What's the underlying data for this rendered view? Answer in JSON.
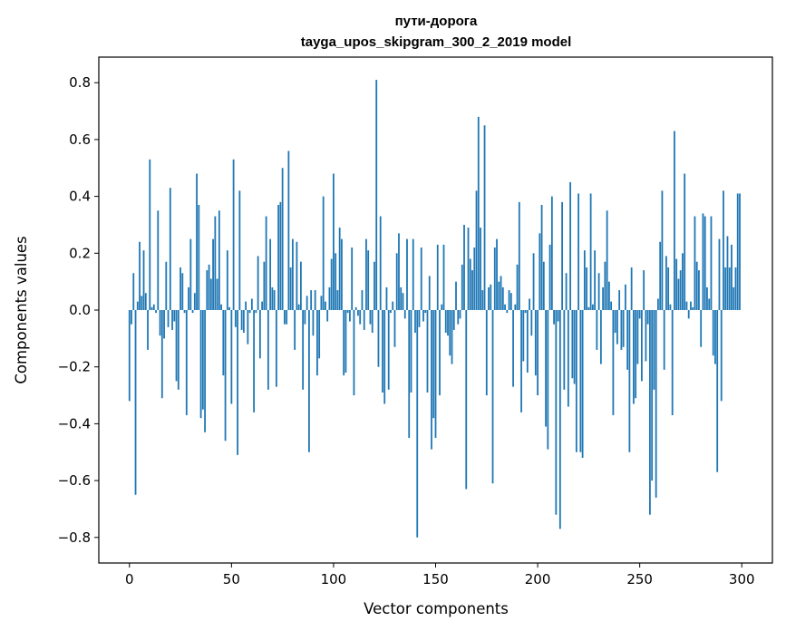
{
  "chart_data": {
    "type": "bar",
    "title": "пути-дорога",
    "subtitle": "tayga_upos_skipgram_300_2_2019 model",
    "xlabel": "Vector components",
    "ylabel": "Components values",
    "xlim": [
      -15,
      315
    ],
    "ylim": [
      -0.89,
      0.89
    ],
    "xticks": [
      0,
      50,
      100,
      150,
      200,
      250,
      300
    ],
    "xtick_labels": [
      "0",
      "50",
      "100",
      "150",
      "200",
      "250",
      "300"
    ],
    "yticks": [
      -0.8,
      -0.6,
      -0.4,
      -0.2,
      0.0,
      0.2,
      0.4,
      0.6,
      0.8
    ],
    "ytick_labels": [
      "−0.8",
      "−0.6",
      "−0.4",
      "−0.2",
      "0.0",
      "0.2",
      "0.4",
      "0.6",
      "0.8"
    ],
    "grid": false,
    "bar_color": "#1f77b4",
    "values": [
      -0.32,
      -0.05,
      0.13,
      -0.65,
      0.03,
      0.24,
      0.05,
      0.21,
      0.06,
      -0.14,
      0.53,
      0.01,
      0.02,
      -0.01,
      0.35,
      -0.09,
      -0.31,
      -0.1,
      0.17,
      -0.06,
      0.43,
      -0.07,
      -0.04,
      -0.25,
      -0.28,
      0.15,
      0.13,
      -0.01,
      -0.37,
      0.08,
      0.25,
      -0.01,
      0.06,
      0.48,
      0.37,
      -0.38,
      -0.35,
      -0.43,
      0.14,
      0.16,
      0.11,
      0.25,
      0.33,
      0.11,
      0.35,
      0.02,
      -0.23,
      -0.46,
      0.21,
      0.01,
      -0.33,
      0.53,
      -0.06,
      -0.51,
      0.42,
      -0.07,
      -0.08,
      0.03,
      -0.12,
      -0.01,
      0.04,
      -0.36,
      -0.01,
      0.19,
      -0.17,
      0.03,
      0.17,
      0.33,
      -0.28,
      0.25,
      0.08,
      0.07,
      -0.27,
      0.37,
      0.38,
      0.5,
      -0.05,
      -0.05,
      0.56,
      0.15,
      0.25,
      -0.14,
      0.24,
      0.02,
      0.17,
      -0.28,
      -0.05,
      0.05,
      -0.5,
      0.07,
      -0.09,
      0.07,
      -0.23,
      -0.17,
      0.05,
      0.4,
      0.03,
      -0.04,
      0.08,
      0.18,
      0.48,
      0.2,
      0.07,
      0.29,
      0.25,
      -0.23,
      -0.22,
      -0.01,
      -0.04,
      0.22,
      -0.3,
      0.01,
      -0.02,
      -0.05,
      0.07,
      -0.07,
      0.25,
      0.21,
      -0.05,
      -0.08,
      0.17,
      0.81,
      -0.2,
      0.33,
      -0.29,
      -0.33,
      0.08,
      -0.28,
      -0.01,
      0.03,
      -0.13,
      0.2,
      0.27,
      0.08,
      0.06,
      -0.03,
      0.25,
      -0.45,
      -0.29,
      0.25,
      -0.08,
      -0.8,
      -0.06,
      0.22,
      -0.04,
      -0.01,
      -0.29,
      0.12,
      -0.49,
      -0.38,
      -0.45,
      0.23,
      -0.3,
      0.02,
      0.23,
      -0.08,
      -0.09,
      -0.16,
      -0.19,
      -0.07,
      0.1,
      -0.05,
      -0.03,
      0.16,
      0.3,
      -0.63,
      0.29,
      0.18,
      0.14,
      0.22,
      0.42,
      0.68,
      0.29,
      0.07,
      0.65,
      -0.3,
      0.08,
      0.09,
      -0.61,
      0.22,
      0.25,
      0.1,
      0.12,
      0.08,
      0.02,
      -0.01,
      0.07,
      0.06,
      -0.27,
      0.02,
      0.16,
      0.38,
      -0.36,
      -0.18,
      -0.01,
      -0.22,
      0.04,
      -0.09,
      0.2,
      -0.23,
      -0.3,
      0.27,
      0.37,
      0.17,
      -0.41,
      -0.49,
      0.23,
      0.4,
      -0.05,
      -0.72,
      -0.04,
      -0.77,
      0.38,
      -0.28,
      0.13,
      -0.34,
      0.45,
      -0.24,
      -0.26,
      -0.5,
      0.41,
      -0.5,
      -0.52,
      0.21,
      0.15,
      0.01,
      0.41,
      0.02,
      0.21,
      -0.14,
      0.13,
      -0.19,
      0.08,
      0.17,
      0.35,
      0.1,
      0.03,
      -0.37,
      -0.08,
      -0.12,
      0.07,
      -0.14,
      -0.13,
      0.09,
      -0.21,
      -0.5,
      0.15,
      -0.33,
      -0.31,
      -0.19,
      -0.03,
      -0.25,
      0.14,
      -0.18,
      -0.05,
      -0.72,
      -0.6,
      -0.28,
      -0.66,
      0.04,
      0.24,
      0.42,
      -0.21,
      0.19,
      0.15,
      0.02,
      -0.37,
      0.63,
      0.18,
      0.11,
      0.14,
      0.2,
      0.48,
      0.03,
      -0.03,
      0.03,
      0.01,
      0.33,
      0.17,
      0.14,
      -0.13,
      0.34,
      0.33,
      0.08,
      0.04,
      0.33,
      -0.16,
      -0.19,
      -0.57,
      0.25,
      -0.32,
      0.42,
      0.15,
      0.26,
      0.15,
      0.23,
      0.08,
      0.15,
      0.41,
      0.41
    ]
  }
}
